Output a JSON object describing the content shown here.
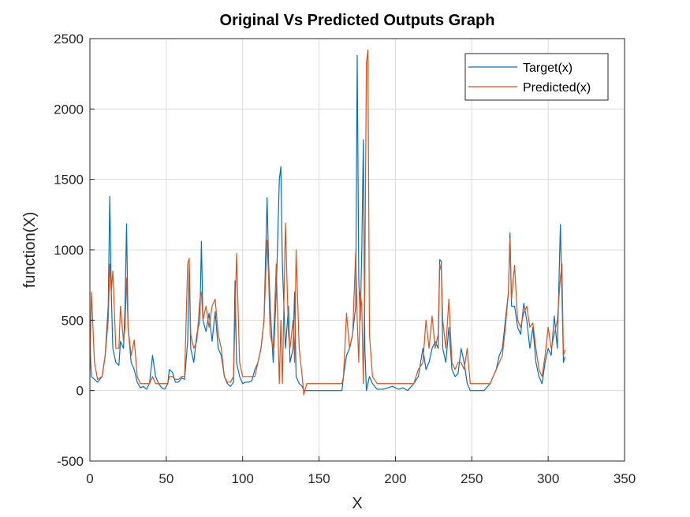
{
  "chart_data": {
    "type": "line",
    "title": "Original Vs Predicted Outputs Graph",
    "x_label": "X",
    "y_label": "function(X)",
    "xlim": [
      0,
      350
    ],
    "xticks": [
      0,
      50,
      100,
      150,
      200,
      250,
      300,
      350
    ],
    "ylim": [
      -500,
      2500
    ],
    "yticks": [
      -500,
      0,
      500,
      1000,
      1500,
      2000,
      2500
    ],
    "grid": true,
    "legend_position": "northeast",
    "x": [
      0,
      1,
      3,
      5,
      8,
      10,
      12,
      13,
      14,
      15,
      17,
      19,
      20,
      22,
      23,
      24,
      25,
      27,
      29,
      31,
      33,
      35,
      37,
      39,
      41,
      43,
      45,
      47,
      49,
      51,
      52,
      54,
      56,
      58,
      60,
      62,
      64,
      65,
      66,
      68,
      70,
      72,
      73,
      74,
      76,
      78,
      80,
      82,
      84,
      86,
      88,
      90,
      92,
      94,
      95,
      96,
      98,
      100,
      102,
      104,
      106,
      108,
      110,
      112,
      114,
      116,
      117,
      118,
      120,
      122,
      124,
      125,
      126,
      128,
      130,
      131,
      133,
      134,
      135,
      137,
      139,
      140,
      142,
      165,
      166,
      168,
      170,
      172,
      174,
      175,
      176,
      177,
      178,
      179,
      180,
      181,
      182,
      183,
      185,
      188,
      192,
      195,
      198,
      202,
      205,
      208,
      212,
      215,
      218,
      220,
      222,
      224,
      226,
      228,
      229,
      230,
      231,
      233,
      235,
      237,
      239,
      241,
      243,
      245,
      247,
      249,
      252,
      258,
      262,
      264,
      266,
      268,
      270,
      272,
      274,
      275,
      276,
      278,
      280,
      282,
      284,
      286,
      288,
      290,
      292,
      294,
      296,
      298,
      300,
      302,
      304,
      306,
      308,
      309,
      310,
      311
    ],
    "series": [
      {
        "name": "Target(x)",
        "color": "#0072BD",
        "values": [
          330,
          100,
          80,
          60,
          100,
          250,
          600,
          1380,
          700,
          300,
          200,
          180,
          350,
          300,
          600,
          1185,
          450,
          200,
          150,
          60,
          20,
          30,
          10,
          50,
          250,
          100,
          50,
          20,
          10,
          50,
          150,
          130,
          60,
          60,
          90,
          80,
          350,
          900,
          300,
          200,
          400,
          500,
          1060,
          500,
          420,
          550,
          350,
          560,
          300,
          250,
          100,
          50,
          30,
          60,
          780,
          200,
          100,
          50,
          60,
          60,
          70,
          150,
          200,
          300,
          500,
          1370,
          900,
          600,
          200,
          700,
          1500,
          1590,
          900,
          300,
          600,
          200,
          300,
          700,
          100,
          50,
          30,
          0,
          0,
          0,
          100,
          250,
          300,
          400,
          600,
          2380,
          800,
          500,
          1000,
          1780,
          300,
          0,
          50,
          100,
          50,
          10,
          10,
          20,
          30,
          10,
          20,
          0,
          50,
          100,
          300,
          150,
          200,
          300,
          350,
          300,
          930,
          920,
          300,
          200,
          450,
          150,
          100,
          120,
          300,
          200,
          50,
          0,
          0,
          0,
          50,
          100,
          150,
          250,
          300,
          500,
          700,
          1120,
          600,
          600,
          450,
          400,
          620,
          500,
          300,
          450,
          200,
          100,
          50,
          200,
          300,
          250,
          530,
          300,
          1180,
          700,
          200,
          240
        ]
      },
      {
        "name": "Predicted(x)",
        "color": "#D95319",
        "values": [
          150,
          700,
          200,
          80,
          100,
          250,
          500,
          900,
          700,
          850,
          300,
          300,
          600,
          350,
          450,
          800,
          450,
          250,
          360,
          100,
          50,
          50,
          50,
          50,
          100,
          50,
          50,
          50,
          50,
          50,
          100,
          100,
          80,
          80,
          100,
          100,
          900,
          940,
          400,
          300,
          350,
          650,
          700,
          500,
          600,
          450,
          600,
          650,
          400,
          300,
          100,
          60,
          60,
          100,
          500,
          975,
          200,
          100,
          100,
          100,
          100,
          100,
          200,
          300,
          500,
          1070,
          800,
          400,
          300,
          900,
          50,
          500,
          50,
          1190,
          400,
          300,
          500,
          200,
          1000,
          300,
          100,
          -30,
          50,
          50,
          100,
          550,
          300,
          400,
          980,
          500,
          200,
          700,
          600,
          50,
          800,
          2330,
          2420,
          400,
          100,
          50,
          50,
          50,
          50,
          50,
          50,
          50,
          50,
          150,
          200,
          500,
          300,
          530,
          300,
          400,
          900,
          850,
          500,
          300,
          650,
          200,
          150,
          200,
          200,
          150,
          300,
          50,
          50,
          50,
          50,
          100,
          150,
          200,
          250,
          450,
          700,
          1080,
          650,
          890,
          500,
          450,
          550,
          600,
          450,
          480,
          300,
          150,
          100,
          250,
          450,
          300,
          400,
          500,
          800,
          900,
          250,
          290
        ]
      }
    ]
  }
}
